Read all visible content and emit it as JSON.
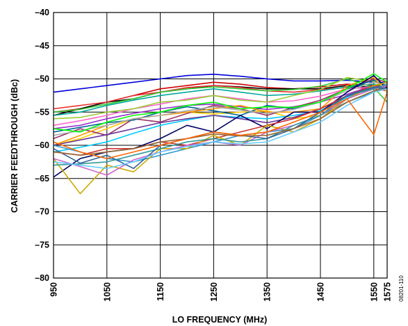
{
  "chart_data": {
    "type": "line",
    "xlabel": "LO FREQUENCY (MHz)",
    "ylabel": "CARRIER FEEDTHROUGH (dBc)",
    "figure_id": "08201-110",
    "xlim": [
      950,
      1575
    ],
    "ylim": [
      -80,
      -40
    ],
    "x_ticks": [
      950,
      1050,
      1150,
      1250,
      1350,
      1450,
      1550,
      1575
    ],
    "y_ticks": [
      -40,
      -45,
      -50,
      -55,
      -60,
      -65,
      -70,
      -75,
      -80
    ],
    "x_tick_labels": [
      "950",
      "1050",
      "1150",
      "1250",
      "1350",
      "1450",
      "1550",
      "1575"
    ],
    "y_tick_labels": [
      "–40",
      "–45",
      "–50",
      "–55",
      "–60",
      "–65",
      "–70",
      "–75",
      "–80"
    ],
    "grid": true,
    "x": [
      950,
      1000,
      1050,
      1100,
      1150,
      1200,
      1250,
      1300,
      1350,
      1400,
      1450,
      1500,
      1550,
      1575
    ],
    "series": [
      {
        "color": "#0000dd",
        "values": [
          -52,
          -51.5,
          -51,
          -50.5,
          -50,
          -49.5,
          -49.3,
          -49.6,
          -50,
          -50.3,
          -50.3,
          -50.2,
          -50.5,
          -50.6
        ]
      },
      {
        "color": "#cc0000",
        "values": [
          -55,
          -54.5,
          -53.5,
          -52.5,
          -51.5,
          -51,
          -50.5,
          -50.8,
          -51.3,
          -51.5,
          -51.2,
          -50.8,
          -51,
          -51.2
        ]
      },
      {
        "color": "#000000",
        "values": [
          -55.5,
          -54.5,
          -53.5,
          -53,
          -52,
          -51.5,
          -51,
          -51.2,
          -51.5,
          -51.5,
          -51.5,
          -51,
          -51.3,
          -51.5
        ]
      },
      {
        "color": "#e83030",
        "values": [
          -54.5,
          -54,
          -53.5,
          -52.5,
          -52,
          -51.3,
          -51,
          -51.3,
          -51.8,
          -52,
          -51.6,
          -51.3,
          -51.5,
          -51.8
        ]
      },
      {
        "color": "#33cc33",
        "values": [
          -55,
          -54.6,
          -53.8,
          -53,
          -52,
          -51.5,
          -51.2,
          -51.5,
          -51.8,
          -51.6,
          -51.1,
          -50,
          -51.3,
          -53.5
        ]
      },
      {
        "color": "#00aa99",
        "values": [
          -55.5,
          -55,
          -54,
          -53.2,
          -52.5,
          -52,
          -51.5,
          -52,
          -52.5,
          -52.3,
          -51.8,
          -51.2,
          -50.8,
          -51.2
        ]
      },
      {
        "color": "#ff66cc",
        "values": [
          -57,
          -56.3,
          -55.5,
          -54.5,
          -53.8,
          -53,
          -52.5,
          -53,
          -53.5,
          -53.3,
          -52.6,
          -51.5,
          -51.2,
          -51.5
        ]
      },
      {
        "color": "#99cc33",
        "values": [
          -56,
          -55.8,
          -55,
          -54.5,
          -53.5,
          -53.2,
          -52.5,
          -53.2,
          -53.5,
          -52.5,
          -51.6,
          -49.8,
          -50.4,
          -51
        ]
      },
      {
        "color": "#ffcc00",
        "values": [
          -60,
          -59,
          -57.5,
          -56,
          -55.5,
          -55,
          -55.3,
          -55,
          -54.8,
          -56,
          -55.5,
          -53,
          -51.5,
          -51
        ]
      },
      {
        "color": "#9933cc",
        "values": [
          -57.5,
          -57,
          -56,
          -55.2,
          -54.5,
          -54,
          -53.8,
          -54.2,
          -54.6,
          -54.2,
          -53.5,
          -52.3,
          -51,
          -51.5
        ]
      },
      {
        "color": "#993366",
        "values": [
          -59,
          -57.5,
          -58.5,
          -56,
          -56.5,
          -55.2,
          -54,
          -54.5,
          -55.5,
          -54.3,
          -53.2,
          -51.5,
          -50,
          -50.5
        ]
      },
      {
        "color": "#006699",
        "values": [
          -58,
          -57.3,
          -56.6,
          -56.2,
          -55,
          -54.2,
          -54.8,
          -55.5,
          -54,
          -54.5,
          -53.5,
          -51.5,
          -50.2,
          -51
        ]
      },
      {
        "color": "#ff9900",
        "values": [
          -60,
          -58.5,
          -57,
          -56,
          -55.5,
          -55,
          -54.5,
          -54,
          -55,
          -55,
          -54.5,
          -51,
          -49.8,
          -52
        ]
      },
      {
        "color": "#aaaaaa",
        "values": [
          -58.5,
          -57.8,
          -57,
          -56,
          -55.5,
          -54.8,
          -54.2,
          -54.7,
          -55.2,
          -54.6,
          -53.5,
          -51.8,
          -50.5,
          -51
        ]
      },
      {
        "color": "#00ccff",
        "values": [
          -61,
          -60.3,
          -59.5,
          -58.2,
          -57,
          -56.2,
          -55.5,
          -55.8,
          -56,
          -55.5,
          -54.8,
          -52.8,
          -51.2,
          -51.5
        ]
      },
      {
        "color": "#663399",
        "values": [
          -60,
          -59.2,
          -58.4,
          -57.5,
          -56.6,
          -56,
          -55.5,
          -56,
          -56.6,
          -55.8,
          -54.5,
          -52.6,
          -51.4,
          -51
        ]
      },
      {
        "color": "#000066",
        "values": [
          -64.8,
          -62,
          -61,
          -60.5,
          -59,
          -57,
          -58,
          -55.5,
          -57.5,
          -55,
          -55,
          -52,
          -49.5,
          -51.5
        ]
      },
      {
        "color": "#00ff00",
        "values": [
          -57.5,
          -58,
          -56.5,
          -55.5,
          -55,
          -54,
          -53.5,
          -54.5,
          -54.2,
          -54.3,
          -53.5,
          -51.5,
          -49.2,
          -50.5
        ]
      },
      {
        "color": "#cc3333",
        "values": [
          -61,
          -61.5,
          -60.5,
          -60.5,
          -59.5,
          -60,
          -59,
          -58,
          -57,
          -56,
          -54.5,
          -52.5,
          -51,
          -51.2
        ]
      },
      {
        "color": "#3399cc",
        "values": [
          -60,
          -61,
          -62,
          -62.5,
          -61.5,
          -60.5,
          -59.5,
          -58.5,
          -58,
          -57.5,
          -55.5,
          -53.5,
          -52,
          -51
        ]
      },
      {
        "color": "#ccaa00",
        "values": [
          -62,
          -67.3,
          -63,
          -64,
          -60.5,
          -60.5,
          -58.5,
          -60,
          -57,
          -58,
          -56,
          -53,
          -51,
          -50.5
        ]
      },
      {
        "color": "#cc66cc",
        "values": [
          -62,
          -63.2,
          -64.5,
          -62.2,
          -61,
          -60,
          -59.5,
          -60,
          -58,
          -57,
          -55.5,
          -53,
          -51.5,
          -51
        ]
      },
      {
        "color": "#339999",
        "values": [
          -63,
          -62.8,
          -62.5,
          -61.5,
          -60.5,
          -59.5,
          -59,
          -59.5,
          -59,
          -57,
          -55.5,
          -52.5,
          -51.5,
          -50.8
        ]
      },
      {
        "color": "#336699",
        "values": [
          -60.5,
          -62.7,
          -61.5,
          -63.5,
          -60,
          -59,
          -58,
          -58.5,
          -59,
          -57.5,
          -55,
          -52.5,
          -51.2,
          -51.5
        ]
      },
      {
        "color": "#996633",
        "values": [
          -61,
          -61.5,
          -61,
          -60.5,
          -59.5,
          -59,
          -58.3,
          -58.6,
          -58.5,
          -57.5,
          -56,
          -53.5,
          -51.8,
          -51.5
        ]
      },
      {
        "color": "#66ccff",
        "values": [
          -62.5,
          -63,
          -63.5,
          -62.5,
          -61,
          -60.2,
          -59.5,
          -59.8,
          -59.5,
          -58,
          -56.5,
          -54,
          -52,
          -51.5
        ]
      },
      {
        "color": "#ff6600",
        "values": [
          -59.5,
          -61,
          -62,
          -61,
          -60,
          -59,
          -58,
          -58.5,
          -58,
          -56.5,
          -55,
          -53,
          -58.4,
          -52
        ]
      }
    ]
  }
}
